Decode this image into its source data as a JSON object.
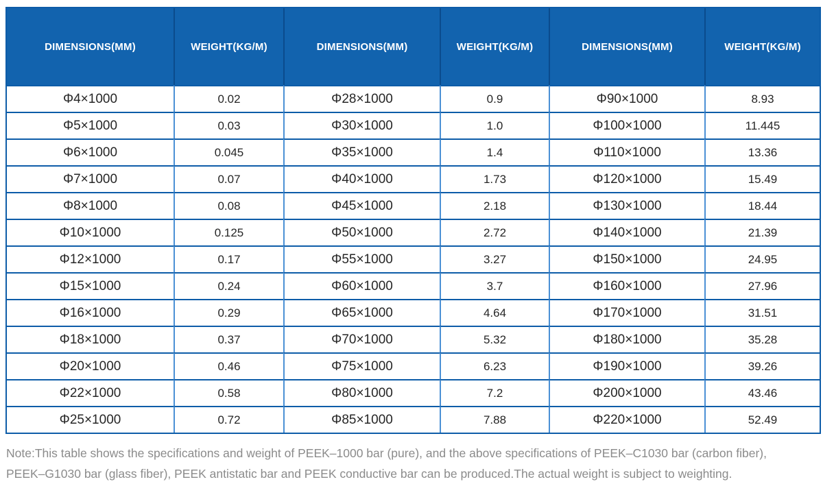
{
  "colors": {
    "header_bg": "#1263ae",
    "header_text": "#ffffff",
    "header_divider": "#0a4b8d",
    "border_horizontal": "#0d5ca8",
    "border_vertical": "#4a90d5",
    "cell_text": "#262626",
    "note_text": "#8b8b8b"
  },
  "table": {
    "headers": [
      "DIMENSIONS(MM)",
      "WEIGHT(KG/M)",
      "DIMENSIONS(MM)",
      "WEIGHT(KG/M)",
      "DIMENSIONS(MM)",
      "WEIGHT(KG/M)"
    ],
    "rows": [
      [
        "Φ4×1000",
        "0.02",
        "Φ28×1000",
        "0.9",
        "Φ90×1000",
        "8.93"
      ],
      [
        "Φ5×1000",
        "0.03",
        "Φ30×1000",
        "1.0",
        "Φ100×1000",
        "11.445"
      ],
      [
        "Φ6×1000",
        "0.045",
        "Φ35×1000",
        "1.4",
        "Φ110×1000",
        "13.36"
      ],
      [
        "Φ7×1000",
        "0.07",
        "Φ40×1000",
        "1.73",
        "Φ120×1000",
        "15.49"
      ],
      [
        "Φ8×1000",
        "0.08",
        "Φ45×1000",
        "2.18",
        "Φ130×1000",
        "18.44"
      ],
      [
        "Φ10×1000",
        "0.125",
        "Φ50×1000",
        "2.72",
        "Φ140×1000",
        "21.39"
      ],
      [
        "Φ12×1000",
        "0.17",
        "Φ55×1000",
        "3.27",
        "Φ150×1000",
        "24.95"
      ],
      [
        "Φ15×1000",
        "0.24",
        "Φ60×1000",
        "3.7",
        "Φ160×1000",
        "27.96"
      ],
      [
        "Φ16×1000",
        "0.29",
        "Φ65×1000",
        "4.64",
        "Φ170×1000",
        "31.51"
      ],
      [
        "Φ18×1000",
        "0.37",
        "Φ70×1000",
        "5.32",
        "Φ180×1000",
        "35.28"
      ],
      [
        "Φ20×1000",
        "0.46",
        "Φ75×1000",
        "6.23",
        "Φ190×1000",
        "39.26"
      ],
      [
        "Φ22×1000",
        "0.58",
        "Φ80×1000",
        "7.2",
        "Φ200×1000",
        "43.46"
      ],
      [
        "Φ25×1000",
        "0.72",
        "Φ85×1000",
        "7.88",
        "Φ220×1000",
        "52.49"
      ]
    ]
  },
  "note": {
    "lines": [
      "Note:This table shows the specifications and weight of PEEK–1000 bar (pure), and the above specifications of PEEK–C1030 bar (carbon fiber),",
      "PEEK–G1030 bar (glass fiber), PEEK antistatic bar and PEEK conductive bar can be produced.The actual weight is subject to weighting."
    ]
  }
}
